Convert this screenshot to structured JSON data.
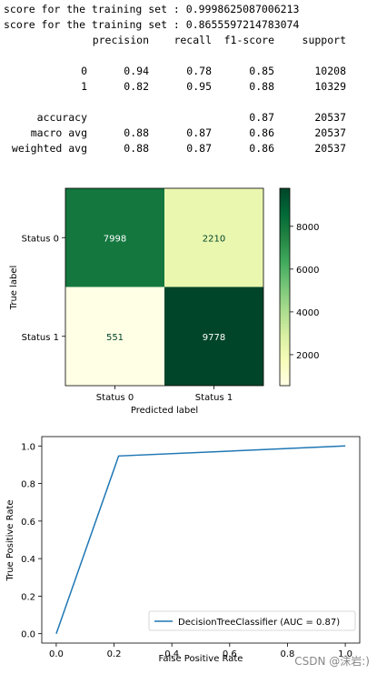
{
  "console": {
    "line1": "score for the training set : 0.9998625087006213",
    "line2": "score for the training set : 0.8655597214783074",
    "headers": [
      "precision",
      "recall",
      "f1-score",
      "support"
    ],
    "rows": [
      {
        "label": "0",
        "cells": [
          "0.94",
          "0.78",
          "0.85",
          "10208"
        ]
      },
      {
        "label": "1",
        "cells": [
          "0.82",
          "0.95",
          "0.88",
          "10329"
        ]
      },
      {
        "label": "accuracy",
        "cells": [
          "",
          "",
          "0.87",
          "20537"
        ]
      },
      {
        "label": "macro avg",
        "cells": [
          "0.88",
          "0.87",
          "0.86",
          "20537"
        ]
      },
      {
        "label": "weighted avg",
        "cells": [
          "0.88",
          "0.87",
          "0.86",
          "20537"
        ]
      }
    ]
  },
  "chart_data": [
    {
      "type": "heatmap",
      "xlabel": "Predicted label",
      "ylabel": "True label",
      "x_categories": [
        "Status 0",
        "Status 1"
      ],
      "y_categories": [
        "Status 0",
        "Status 1"
      ],
      "values": [
        [
          7998,
          2210
        ],
        [
          551,
          9778
        ]
      ],
      "colorbar": {
        "min": 551,
        "max": 9778,
        "ticks": [
          2000,
          4000,
          6000,
          8000
        ]
      },
      "colors": {
        "low": "#ffffe5",
        "mid": "#78c679",
        "high": "#004529"
      }
    },
    {
      "type": "line",
      "xlabel": "False Positive Rate",
      "ylabel": "True Positive Rate",
      "xlim": [
        -0.05,
        1.05
      ],
      "ylim": [
        -0.05,
        1.05
      ],
      "xticks": [
        "0.0",
        "0.2",
        "0.4",
        "0.6",
        "0.8",
        "1.0"
      ],
      "yticks": [
        "0.0",
        "0.2",
        "0.4",
        "0.6",
        "0.8",
        "1.0"
      ],
      "series": [
        {
          "name": "DecisionTreeClassifier (AUC = 0.87)",
          "x": [
            0,
            0.2158,
            1
          ],
          "y": [
            0,
            0.9467,
            1
          ],
          "color": "#1f77b4"
        }
      ],
      "legend": "lower-right"
    }
  ],
  "watermark": "CSDN @沫岩:)"
}
